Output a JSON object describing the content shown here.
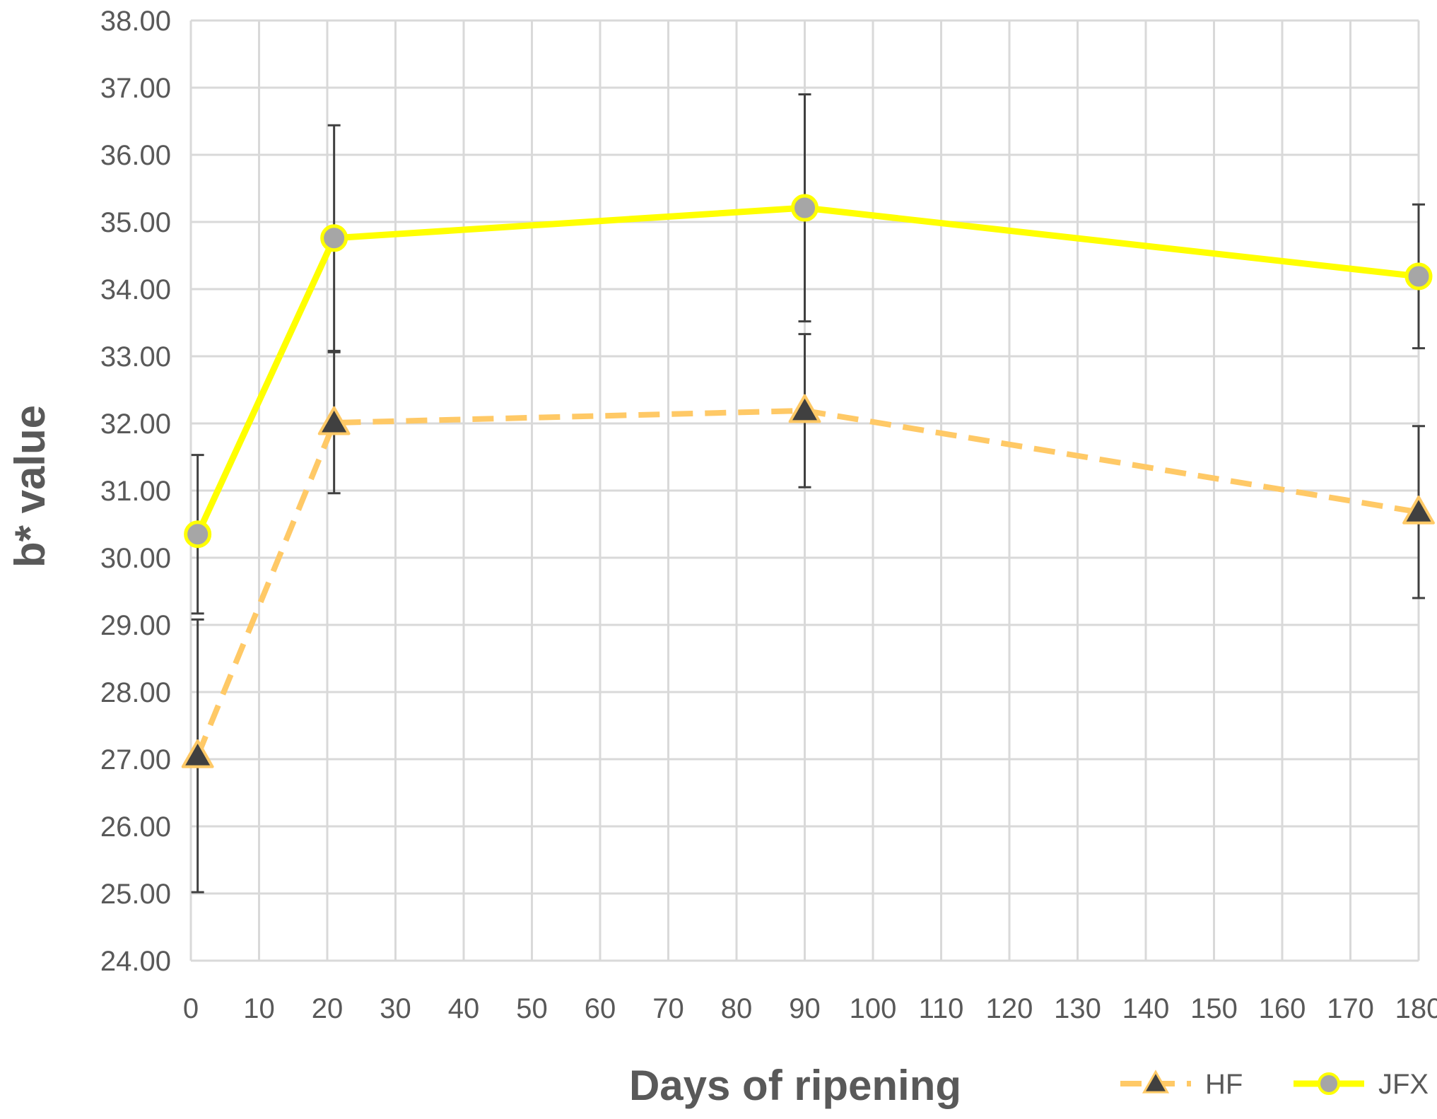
{
  "chart_data": {
    "type": "line",
    "title": "",
    "xlabel": "Days of ripening",
    "ylabel": "b* value",
    "xlim": [
      0,
      180
    ],
    "ylim": [
      24,
      38
    ],
    "x_tick_step": 10,
    "y_tick_step": 1,
    "y_tick_decimals": 2,
    "grid": true,
    "legend_position": "bottom-right",
    "series": [
      {
        "name": "HF",
        "color": "#ffc966",
        "marker_color": "#404040",
        "marker": "triangle",
        "line_style": "dashed",
        "x": [
          1,
          21,
          90,
          180
        ],
        "y": [
          27.05,
          32.01,
          32.19,
          30.68
        ],
        "error": [
          2.03,
          1.05,
          1.14,
          1.28
        ]
      },
      {
        "name": "JFX",
        "color": "#ffff00",
        "marker_color": "#a6a6a6",
        "marker": "circle",
        "line_style": "solid",
        "x": [
          1,
          21,
          90,
          180
        ],
        "y": [
          30.35,
          34.76,
          35.21,
          34.19
        ],
        "error": [
          1.18,
          1.68,
          1.69,
          1.07
        ]
      }
    ]
  }
}
